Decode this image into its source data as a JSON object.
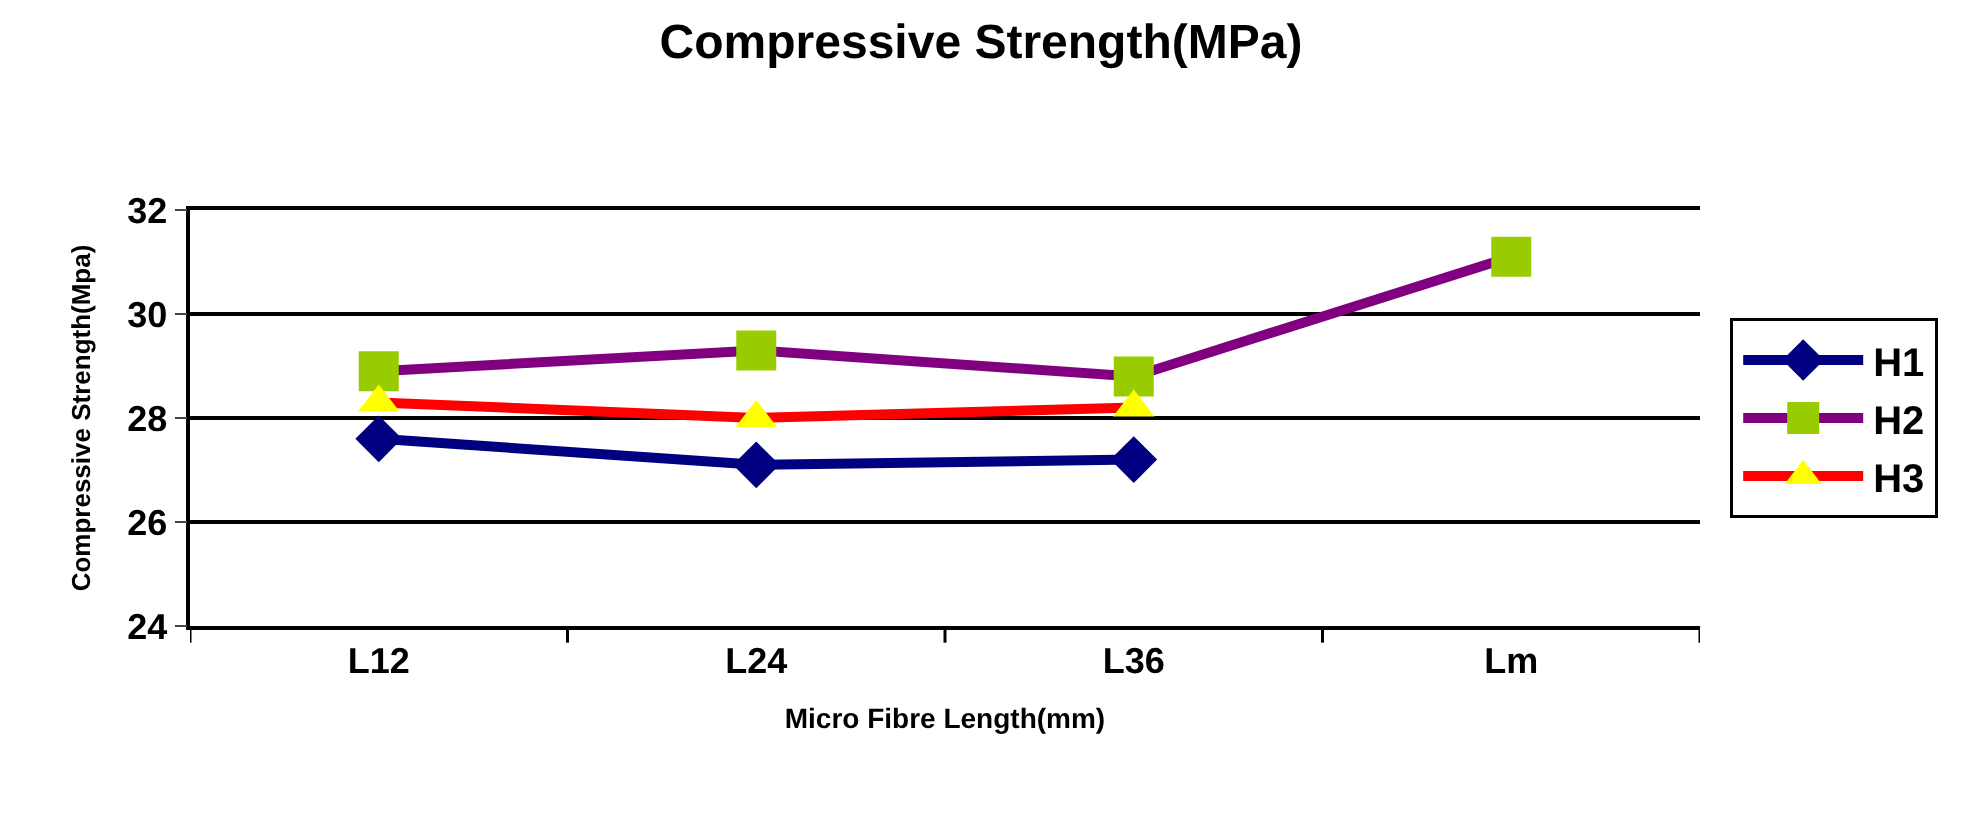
{
  "chart_data": {
    "type": "line",
    "title": "Compressive Strength(MPa)",
    "xlabel": "Micro Fibre Length(mm)",
    "ylabel": "Compressive Strength(Mpa)",
    "categories": [
      "L12",
      "L24",
      "L36",
      "Lm"
    ],
    "series": [
      {
        "name": "H1",
        "color": "#000080",
        "colors": [
          "#000080",
          "#000080",
          "#000080",
          "#000080"
        ],
        "marker": "diamond",
        "values": [
          27.6,
          27.1,
          27.2,
          null
        ]
      },
      {
        "name": "H2",
        "color": "#800080",
        "colors": [
          "#99cc00",
          "#99cc00",
          "#99cc00",
          "#99cc00"
        ],
        "marker": "square",
        "values": [
          28.9,
          29.3,
          28.8,
          31.1
        ]
      },
      {
        "name": "H3",
        "color": "#ff0000",
        "colors": [
          "#ffff00",
          "#ffff00",
          "#ffff00",
          "#ffff00"
        ],
        "marker": "triangle",
        "values": [
          28.3,
          28.0,
          28.2,
          null
        ]
      }
    ],
    "ylim": [
      24,
      32
    ],
    "yticks": [
      24,
      26,
      28,
      30,
      32
    ],
    "grid": "y",
    "legend": "right",
    "line_style": "solid"
  }
}
